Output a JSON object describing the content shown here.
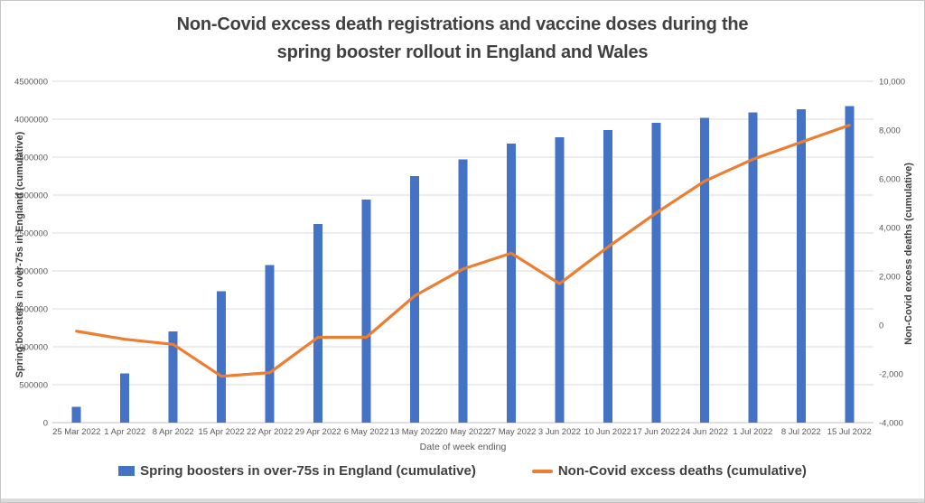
{
  "title": {
    "line1": "Non-Covid excess death registrations and vaccine doses during the",
    "line2": "spring booster rollout in England and Wales"
  },
  "chart_data": {
    "type": "combo-bar-line",
    "title": "Non-Covid excess death registrations and vaccine doses during the spring booster rollout in England and Wales",
    "xlabel": "Date of week ending",
    "grid": true,
    "legend_position": "bottom",
    "categories": [
      "25 Mar 2022",
      "1 Apr 2022",
      "8 Apr 2022",
      "15 Apr 2022",
      "22 Apr 2022",
      "29 Apr 2022",
      "6 May 2022",
      "13 May 2022",
      "20 May 2022",
      "27 May 2022",
      "3 Jun 2022",
      "10 Jun 2022",
      "17 Jun 2022",
      "24 Jun 2022",
      "1 Jul 2022",
      "8 Jul 2022",
      "15 Jul 2022"
    ],
    "series": [
      {
        "name": "Spring boosters in over-75s in England (cumulative)",
        "type": "bar",
        "axis": "left",
        "color": "#4472C4",
        "values": [
          210000,
          650000,
          1200000,
          1730000,
          2080000,
          2620000,
          2940000,
          3250000,
          3470000,
          3680000,
          3760000,
          3860000,
          3950000,
          4020000,
          4090000,
          4130000,
          4170000
        ]
      },
      {
        "name": "Non-Covid excess deaths (cumulative)",
        "type": "line",
        "axis": "right",
        "color": "#ED7D31",
        "values": [
          -250,
          -580,
          -790,
          -2100,
          -1950,
          -500,
          -500,
          1200,
          2300,
          2950,
          1700,
          3200,
          4600,
          5900,
          6800,
          7500,
          8200
        ]
      }
    ],
    "left_axis": {
      "title": "Spring boosters in over-75s in England (cumulative)",
      "min": 0,
      "max": 4500000,
      "step": 500000,
      "tick_labels": [
        "0",
        "500000",
        "1000000",
        "1500000",
        "2000000",
        "2500000",
        "3000000",
        "3500000",
        "4000000",
        "4500000"
      ]
    },
    "right_axis": {
      "title": "Non-Covid excess deaths (cumulative)",
      "min": -4000,
      "max": 10000,
      "step": 2000,
      "tick_labels": [
        "-4,000",
        "-2,000",
        "0",
        "2,000",
        "4,000",
        "6,000",
        "8,000",
        "10,000"
      ]
    }
  },
  "colors": {
    "bar": "#4472C4",
    "line": "#ED7D31",
    "title_text": "#404040",
    "axis_text": "#595959",
    "gridline": "#D9D9D9",
    "axis_line": "#BFBFBF"
  }
}
